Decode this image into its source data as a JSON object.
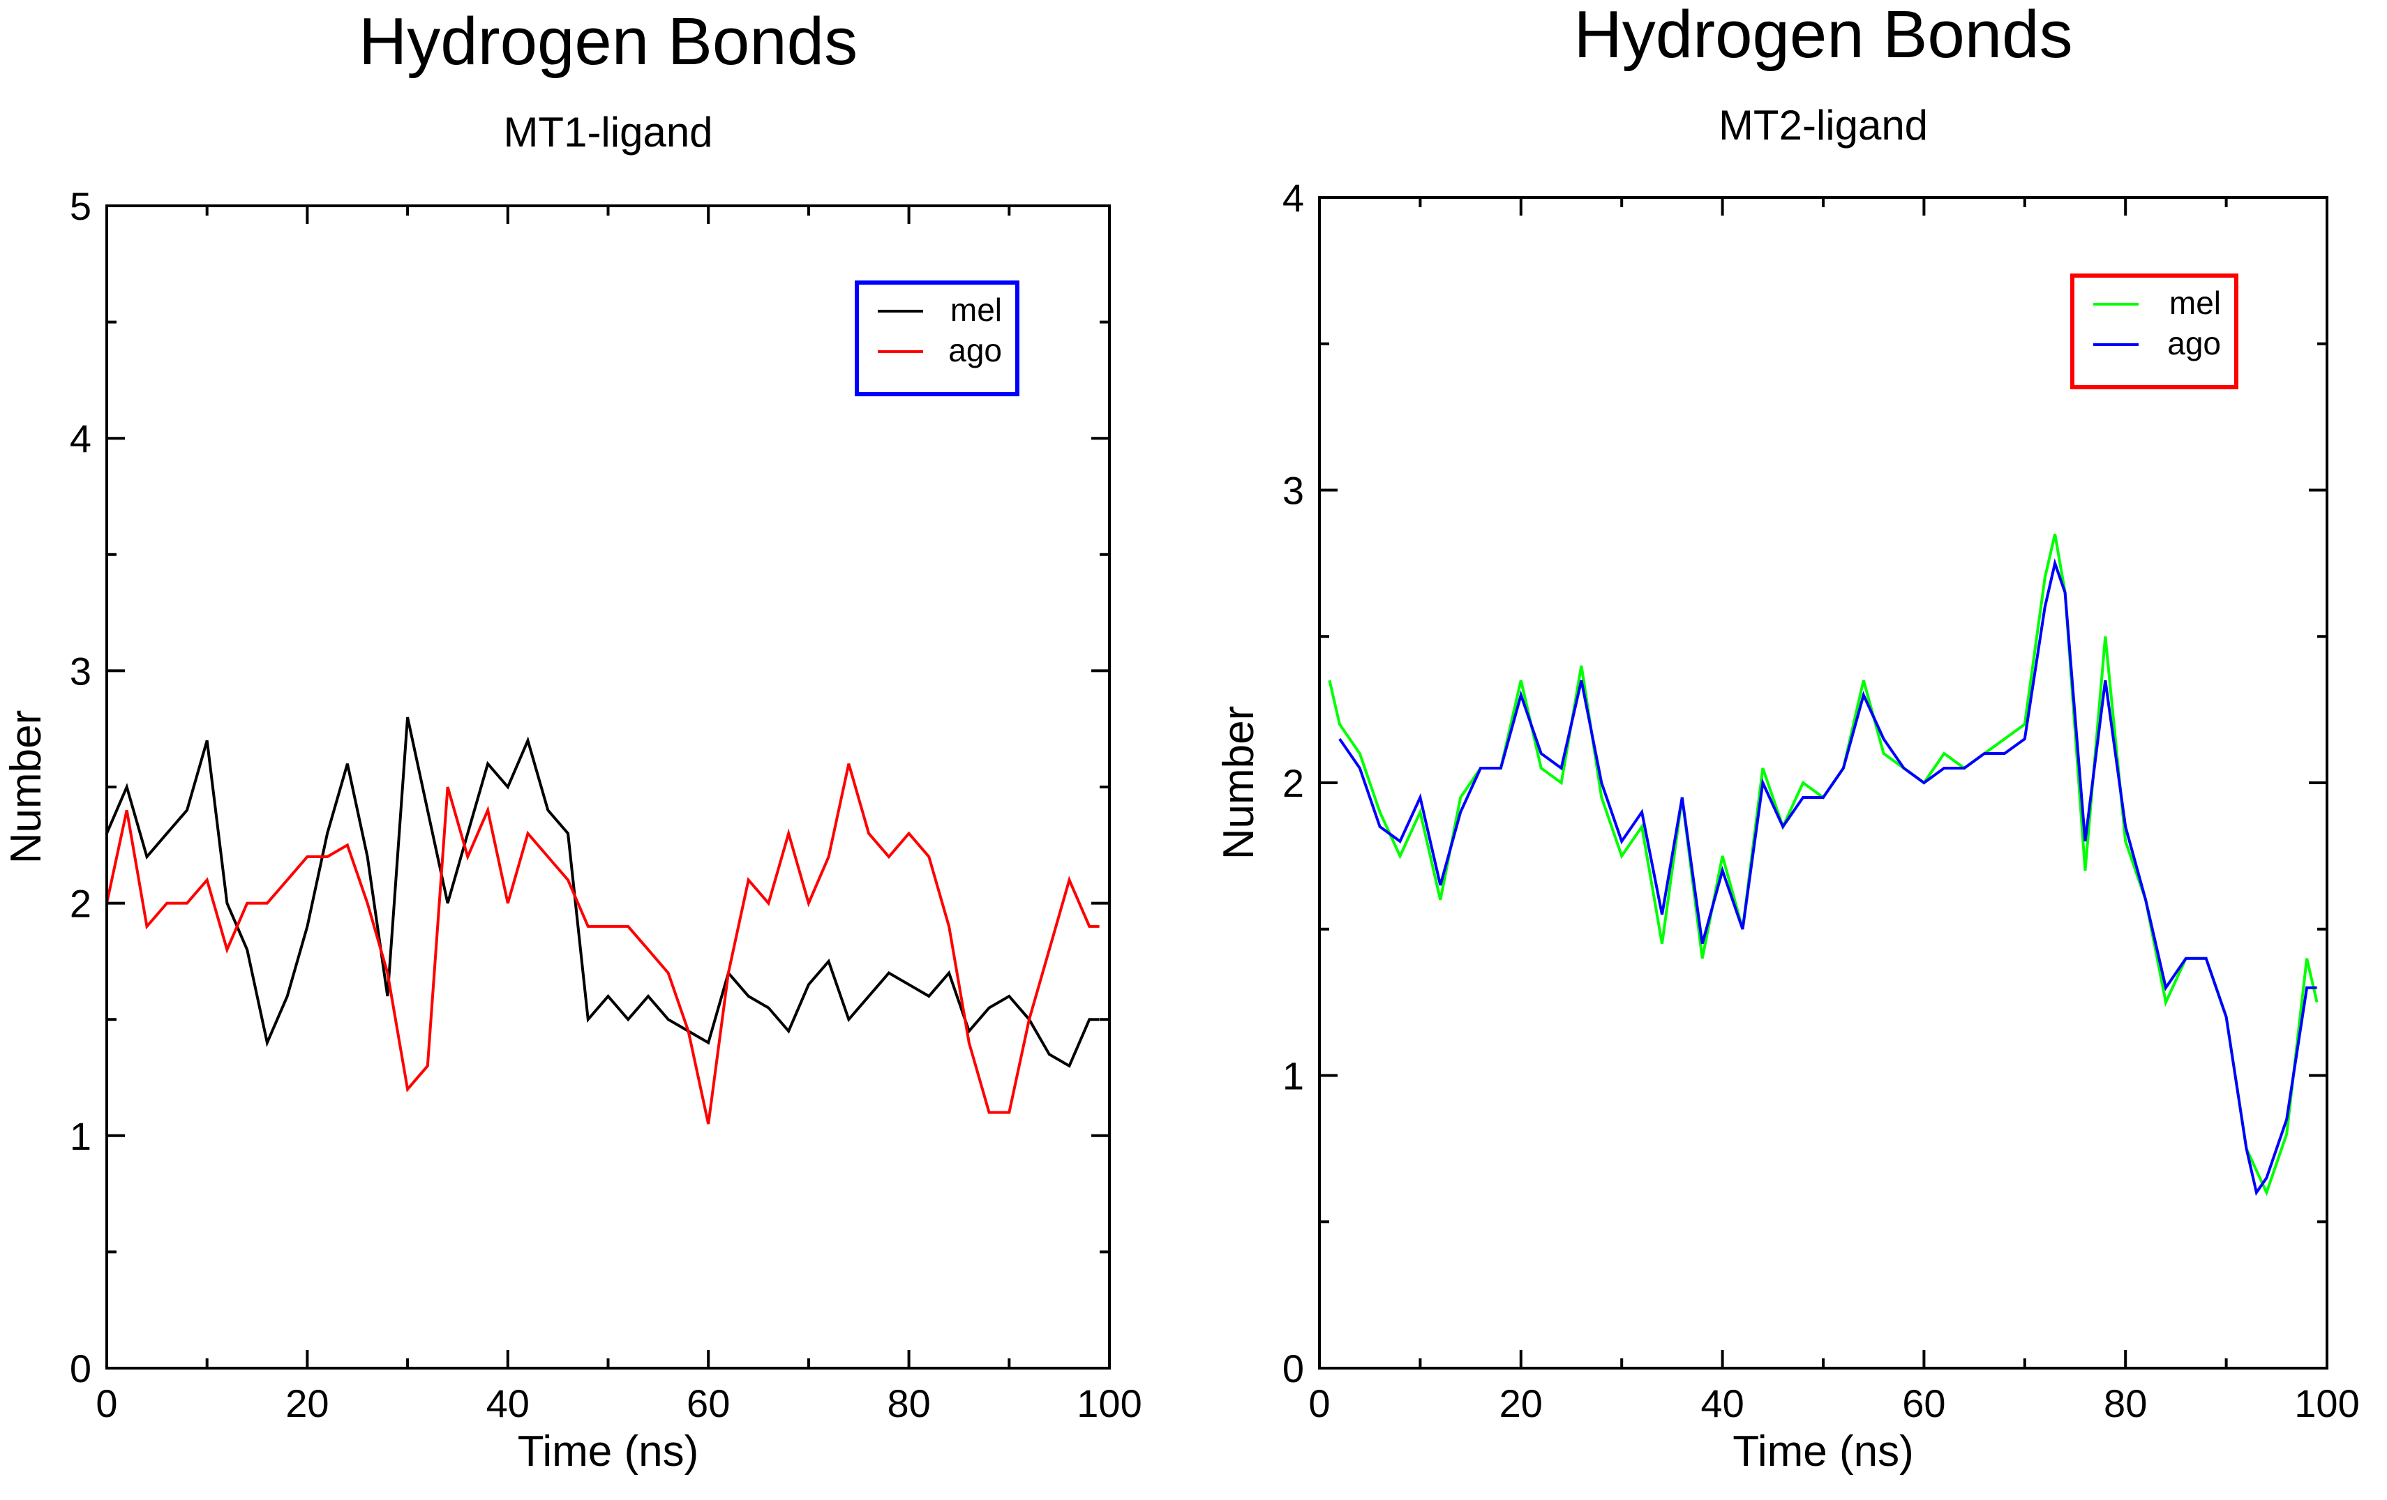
{
  "chart_data": [
    {
      "type": "line",
      "title": "Hydrogen Bonds",
      "subtitle": "MT1-ligand",
      "xlabel": "Time (ns)",
      "ylabel": "Number",
      "xlim": [
        0,
        100
      ],
      "ylim": [
        0,
        5
      ],
      "xticks": [
        0,
        20,
        40,
        60,
        80,
        100
      ],
      "yticks": [
        0,
        1,
        2,
        3,
        4,
        5
      ],
      "legend_position": "top-right",
      "legend_frame_color": "#0000ff",
      "series": [
        {
          "name": "mel",
          "color": "#000000",
          "x": [
            0,
            2,
            4,
            6,
            8,
            10,
            12,
            14,
            16,
            18,
            20,
            22,
            24,
            26,
            28,
            30,
            32,
            34,
            36,
            38,
            40,
            42,
            44,
            46,
            48,
            50,
            52,
            54,
            56,
            58,
            60,
            62,
            64,
            66,
            68,
            70,
            72,
            74,
            76,
            78,
            80,
            82,
            84,
            86,
            88,
            90,
            92,
            94,
            96,
            98,
            99
          ],
          "y": [
            2.3,
            2.5,
            2.2,
            2.3,
            2.4,
            2.7,
            2.0,
            1.8,
            1.4,
            1.6,
            1.9,
            2.3,
            2.6,
            2.2,
            1.6,
            2.8,
            2.4,
            2.0,
            2.3,
            2.6,
            2.5,
            2.7,
            2.4,
            2.3,
            1.5,
            1.6,
            1.5,
            1.6,
            1.5,
            1.45,
            1.4,
            1.7,
            1.6,
            1.55,
            1.45,
            1.65,
            1.75,
            1.5,
            1.6,
            1.7,
            1.65,
            1.6,
            1.7,
            1.45,
            1.55,
            1.6,
            1.5,
            1.35,
            1.3,
            1.5,
            1.5
          ]
        },
        {
          "name": "ago",
          "color": "#ff0000",
          "x": [
            0,
            2,
            4,
            6,
            8,
            10,
            12,
            14,
            16,
            18,
            20,
            22,
            24,
            26,
            28,
            30,
            32,
            34,
            36,
            38,
            40,
            42,
            44,
            46,
            48,
            50,
            52,
            54,
            56,
            58,
            60,
            62,
            64,
            66,
            68,
            70,
            72,
            74,
            76,
            78,
            80,
            82,
            84,
            86,
            88,
            90,
            92,
            94,
            96,
            98,
            99
          ],
          "y": [
            2.0,
            2.4,
            1.9,
            2.0,
            2.0,
            2.1,
            1.8,
            2.0,
            2.0,
            2.1,
            2.2,
            2.2,
            2.25,
            2.0,
            1.7,
            1.2,
            1.3,
            2.5,
            2.2,
            2.4,
            2.0,
            2.3,
            2.2,
            2.1,
            1.9,
            1.9,
            1.9,
            1.8,
            1.7,
            1.45,
            1.05,
            1.7,
            2.1,
            2.0,
            2.3,
            2.0,
            2.2,
            2.6,
            2.3,
            2.2,
            2.3,
            2.2,
            1.9,
            1.4,
            1.1,
            1.1,
            1.5,
            1.8,
            2.1,
            1.9,
            1.9
          ]
        }
      ]
    },
    {
      "type": "line",
      "title": "Hydrogen Bonds",
      "subtitle": "MT2-ligand",
      "xlabel": "Time (ns)",
      "ylabel": "Number",
      "xlim": [
        0,
        100
      ],
      "ylim": [
        0,
        4
      ],
      "xticks": [
        0,
        20,
        40,
        60,
        80,
        100
      ],
      "yticks": [
        0,
        1,
        2,
        3,
        4
      ],
      "legend_position": "top-right",
      "legend_frame_color": "#ff0000",
      "series": [
        {
          "name": "mel",
          "color": "#00ff00",
          "x": [
            1,
            2,
            4,
            6,
            8,
            10,
            12,
            14,
            16,
            18,
            20,
            22,
            24,
            26,
            28,
            30,
            32,
            34,
            36,
            38,
            40,
            42,
            44,
            46,
            48,
            50,
            52,
            54,
            56,
            58,
            60,
            62,
            64,
            66,
            68,
            70,
            72,
            73,
            74,
            76,
            78,
            80,
            82,
            84,
            86,
            88,
            90,
            92,
            94,
            96,
            98,
            99
          ],
          "y": [
            2.35,
            2.2,
            2.1,
            1.9,
            1.75,
            1.9,
            1.6,
            1.95,
            2.05,
            2.05,
            2.35,
            2.05,
            2.0,
            2.4,
            1.95,
            1.75,
            1.85,
            1.45,
            1.95,
            1.4,
            1.75,
            1.5,
            2.05,
            1.85,
            2.0,
            1.95,
            2.05,
            2.35,
            2.1,
            2.05,
            2.0,
            2.1,
            2.05,
            2.1,
            2.15,
            2.2,
            2.7,
            2.85,
            2.65,
            1.7,
            2.5,
            1.8,
            1.6,
            1.25,
            1.4,
            1.4,
            1.2,
            0.75,
            0.6,
            0.8,
            1.4,
            1.25
          ]
        },
        {
          "name": "ago",
          "color": "#0000ff",
          "x": [
            2,
            4,
            6,
            8,
            10,
            12,
            14,
            16,
            18,
            20,
            22,
            24,
            26,
            28,
            30,
            32,
            34,
            36,
            38,
            40,
            42,
            44,
            46,
            48,
            50,
            52,
            54,
            56,
            58,
            60,
            62,
            64,
            66,
            68,
            70,
            72,
            73,
            74,
            76,
            78,
            80,
            82,
            84,
            86,
            88,
            90,
            92,
            93,
            94,
            96,
            98,
            99
          ],
          "y": [
            2.15,
            2.05,
            1.85,
            1.8,
            1.95,
            1.65,
            1.9,
            2.05,
            2.05,
            2.3,
            2.1,
            2.05,
            2.35,
            2.0,
            1.8,
            1.9,
            1.55,
            1.95,
            1.45,
            1.7,
            1.5,
            2.0,
            1.85,
            1.95,
            1.95,
            2.05,
            2.3,
            2.15,
            2.05,
            2.0,
            2.05,
            2.05,
            2.1,
            2.1,
            2.15,
            2.6,
            2.75,
            2.65,
            1.8,
            2.35,
            1.85,
            1.6,
            1.3,
            1.4,
            1.4,
            1.2,
            0.75,
            0.6,
            0.65,
            0.85,
            1.3,
            1.3
          ]
        }
      ]
    }
  ]
}
